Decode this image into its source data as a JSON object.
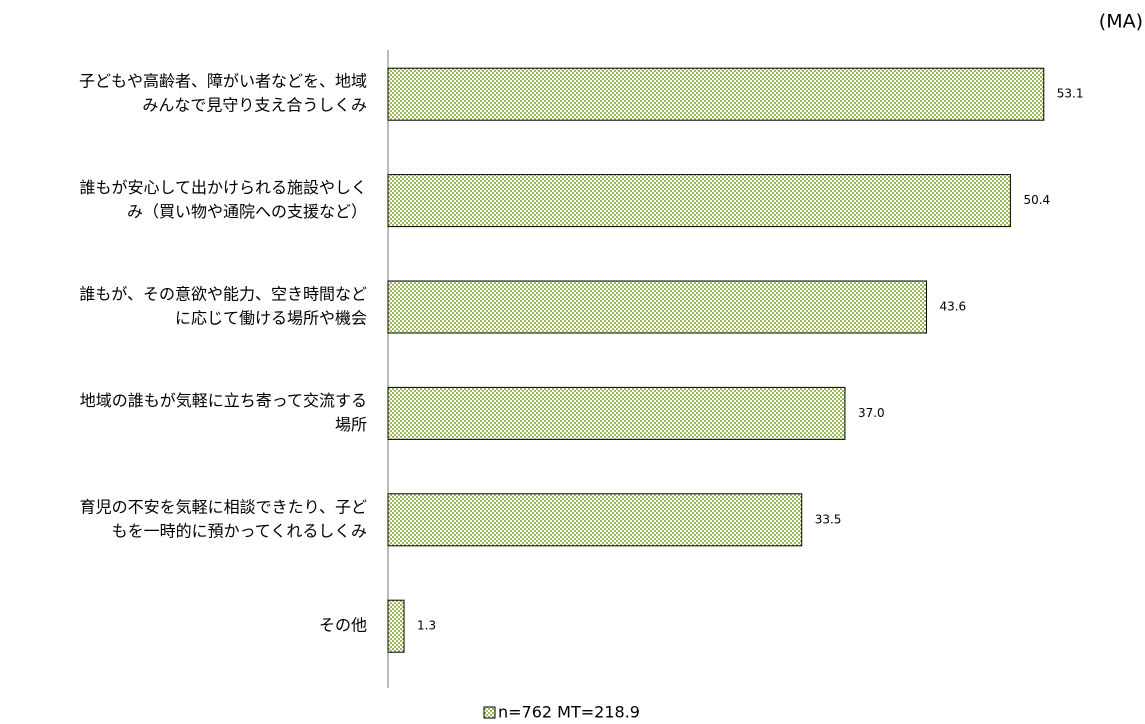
{
  "chart_data": {
    "type": "barh",
    "note_label": "(MA)",
    "categories": [
      [
        "子どもや高齢者、障がい者などを、地域",
        "みんなで見守り支え合うしくみ"
      ],
      [
        "誰もが安心して出かけられる施設やしく",
        "み（買い物や通院への支援など）"
      ],
      [
        "誰もが、その意欲や能力、空き時間など",
        "に応じて働ける場所や機会"
      ],
      [
        "地域の誰もが気軽に立ち寄って交流する",
        "場所"
      ],
      [
        "育児の不安を気軽に相談できたり、子ど",
        "もを一時的に預かってくれるしくみ"
      ],
      [
        "その他"
      ]
    ],
    "series": [
      {
        "name": "n=762  MT=218.9",
        "color": "#9bbb59",
        "values": [
          53.1,
          50.4,
          43.6,
          37.0,
          33.5,
          1.3
        ],
        "value_labels": [
          "53.1",
          "50.4",
          "43.6",
          "37.0",
          "33.5",
          "1.3"
        ]
      }
    ],
    "xlim": [
      0,
      60
    ],
    "legend": "bottom"
  }
}
